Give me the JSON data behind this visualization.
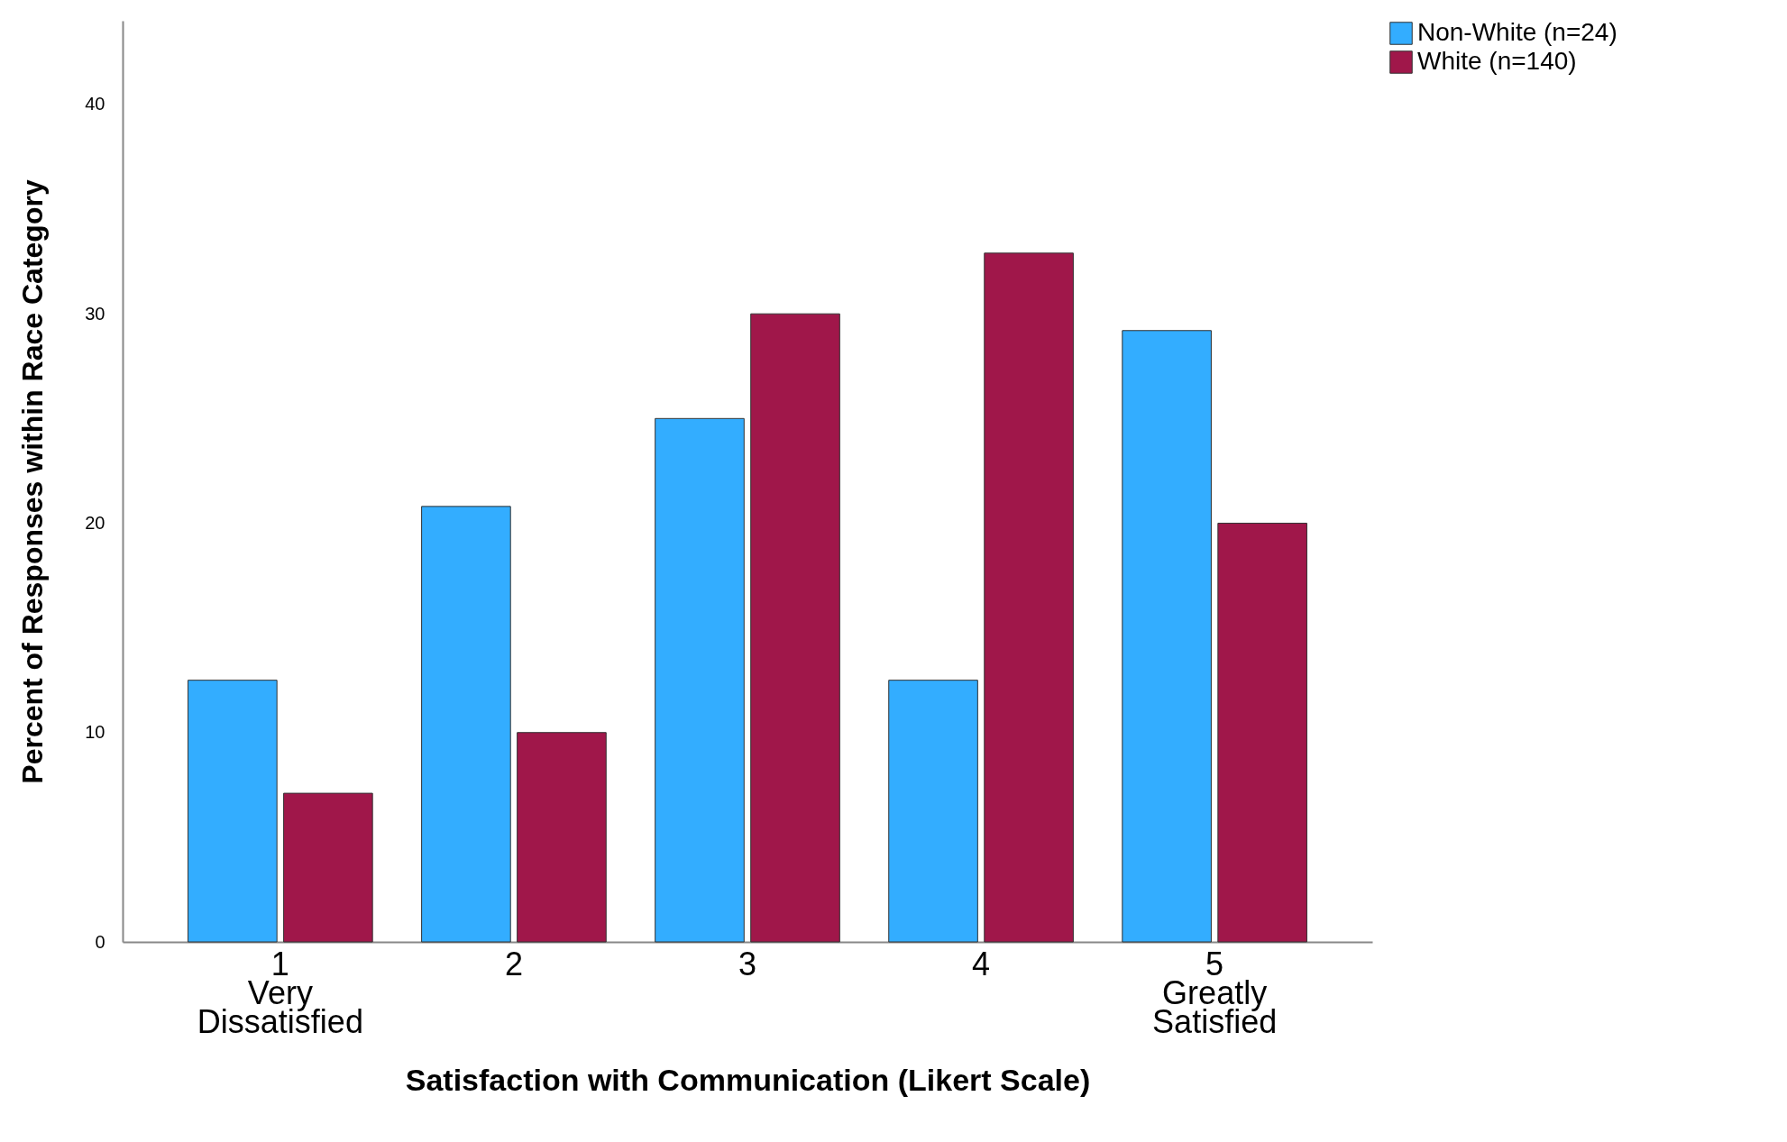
{
  "chart_data": {
    "type": "bar",
    "xlabel": "Satisfaction with Communication (Likert Scale)",
    "ylabel": "Percent of Responses within Race Category",
    "categories": [
      "1\nVery\nDissatisfied",
      "2",
      "3",
      "4",
      "5\nGreatly\nSatisfied"
    ],
    "series": [
      {
        "name": "Non-White (n=24)",
        "color": "#33adff",
        "values": [
          12.5,
          20.8,
          25,
          12.5,
          29.2
        ]
      },
      {
        "name": "White (n=140)",
        "color": "#a0174a",
        "values": [
          7.1,
          10,
          30,
          32.9,
          20
        ]
      }
    ],
    "ylim": [
      0,
      44
    ],
    "yticks": [
      0,
      10,
      20,
      30,
      40
    ],
    "legend": "top right"
  }
}
